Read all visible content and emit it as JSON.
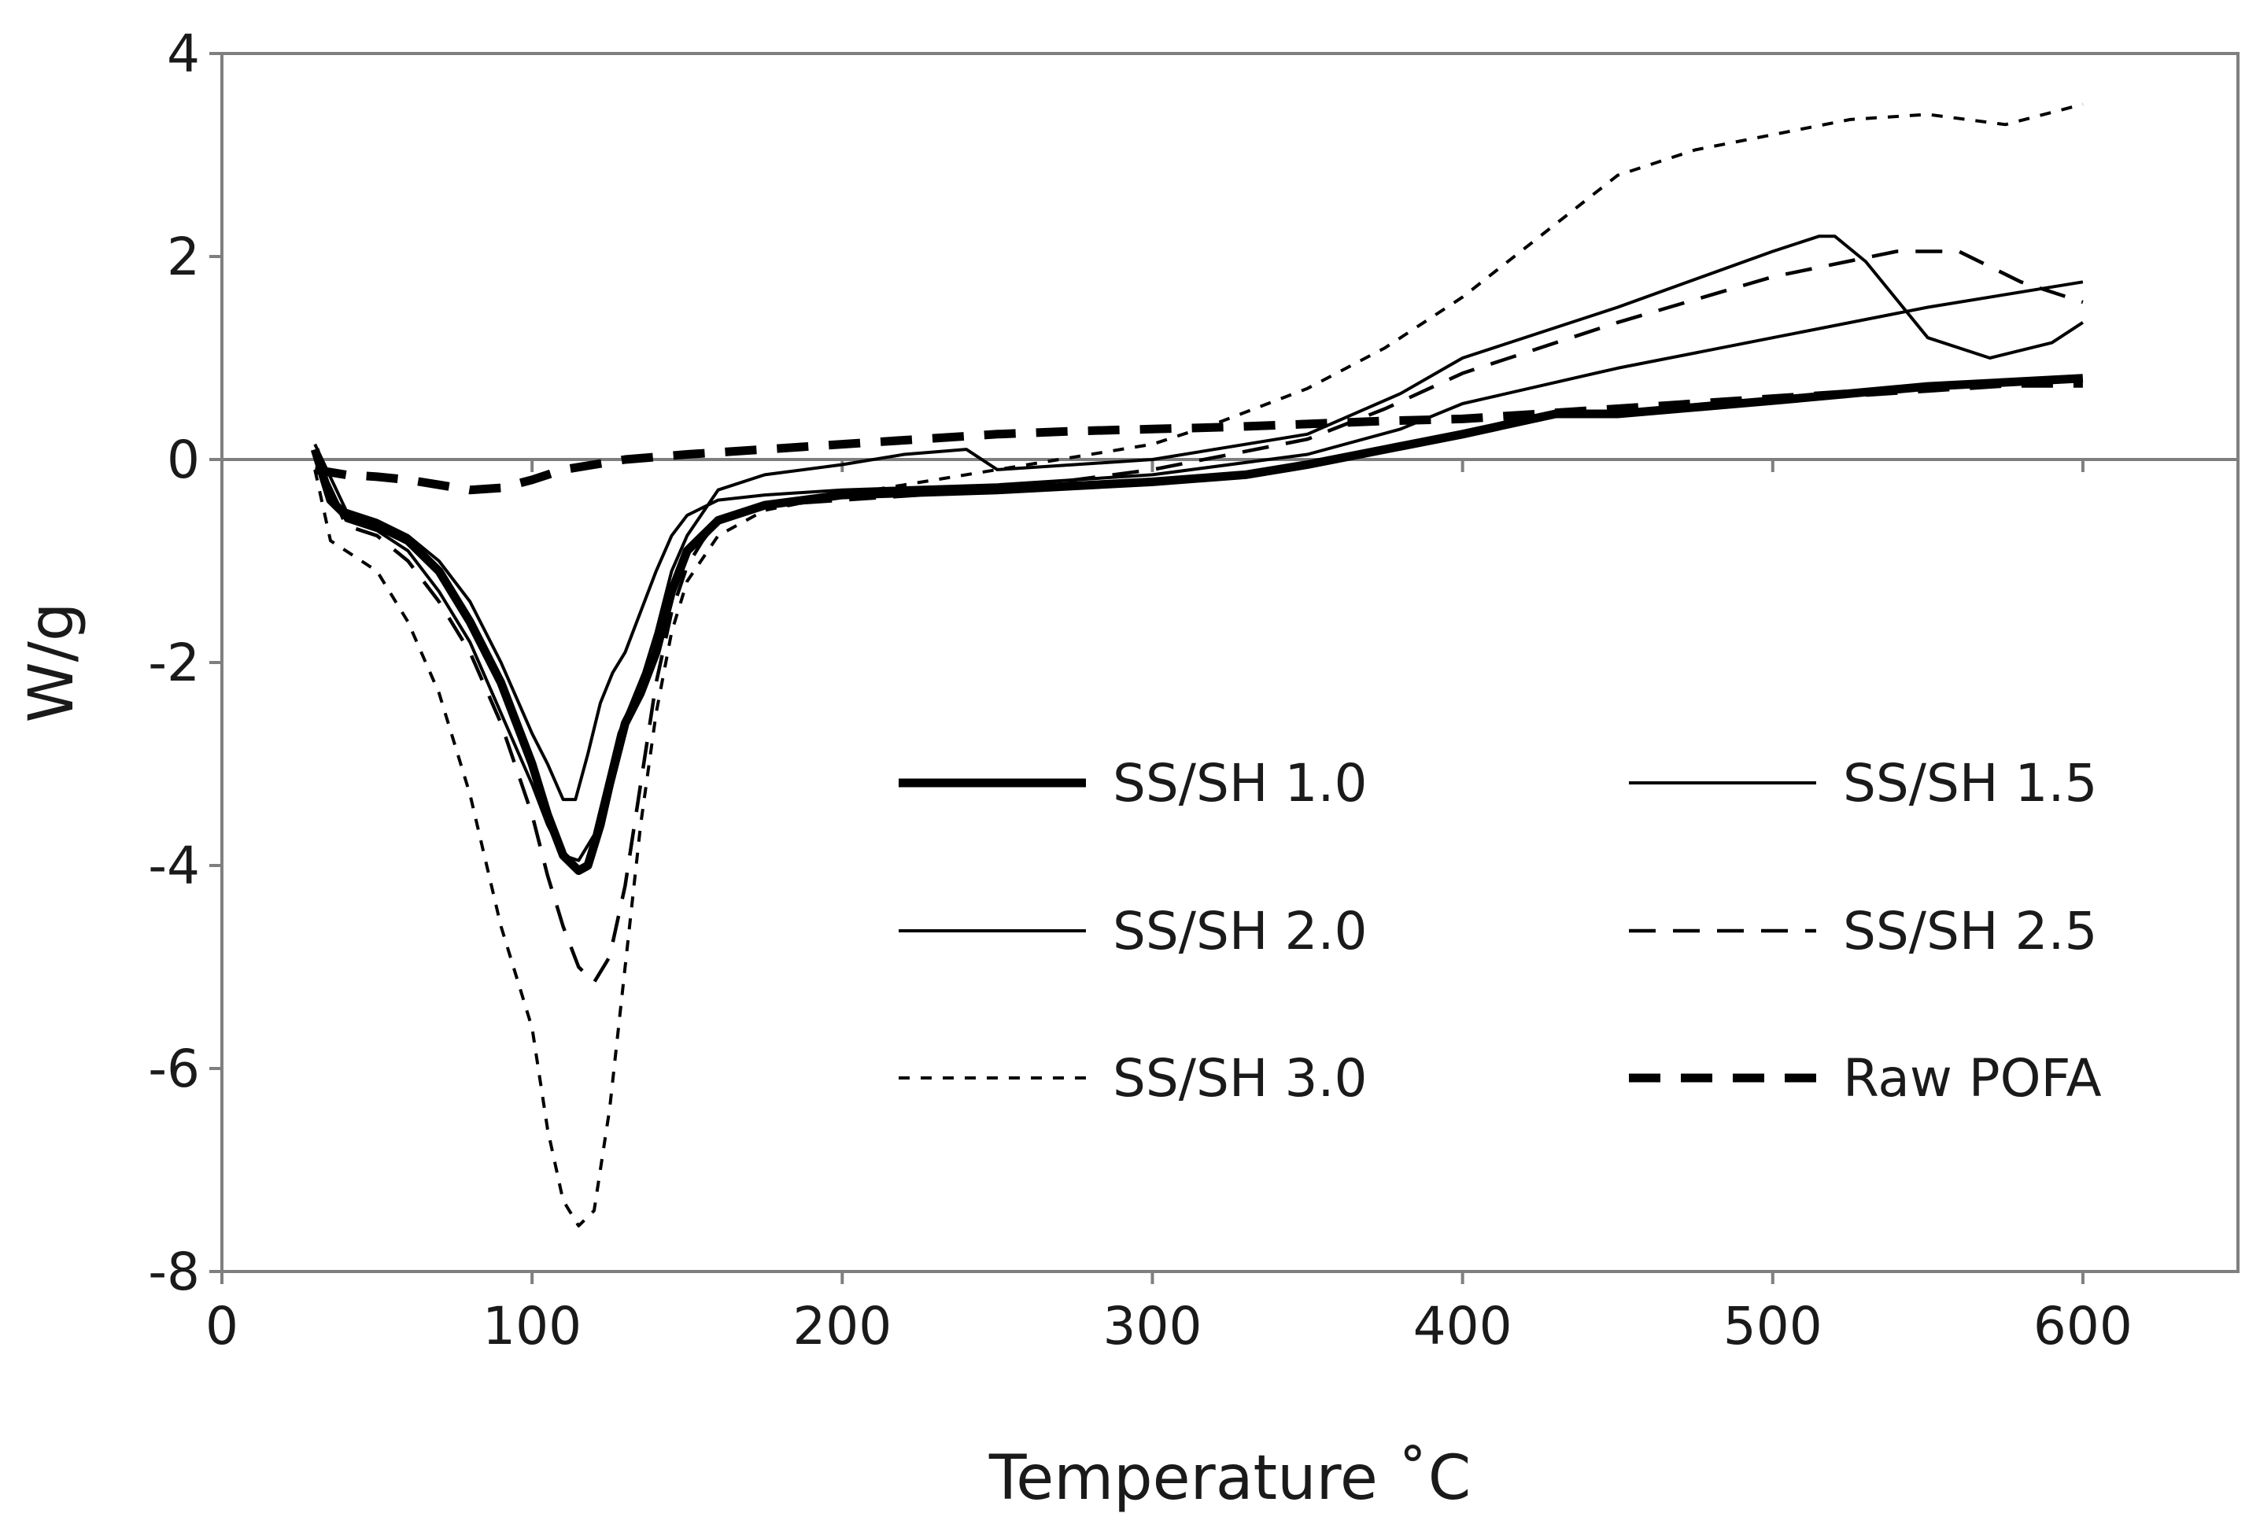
{
  "chart_data": {
    "type": "line",
    "title": "",
    "xlabel": "Temperature ˚C",
    "ylabel": "W/g",
    "xlim": [
      0,
      650
    ],
    "ylim": [
      -8,
      4
    ],
    "xticks": [
      0,
      100,
      200,
      300,
      400,
      500,
      600
    ],
    "yticks": [
      -8,
      -6,
      -4,
      -2,
      0,
      2,
      4
    ],
    "grid": false,
    "legend_position": "lower-right",
    "series": [
      {
        "name": "SS/SH 1.0",
        "style": "thick-solid",
        "color": "#000000",
        "x": [
          30,
          35,
          40,
          50,
          60,
          70,
          80,
          90,
          100,
          105,
          110,
          115,
          118,
          122,
          125,
          130,
          135,
          140,
          145,
          150,
          160,
          175,
          200,
          250,
          300,
          330,
          350,
          375,
          400,
          430,
          450,
          500,
          550,
          600
        ],
        "y": [
          0.1,
          -0.4,
          -0.55,
          -0.65,
          -0.8,
          -1.1,
          -1.6,
          -2.2,
          -3.0,
          -3.5,
          -3.9,
          -4.05,
          -4.0,
          -3.6,
          -3.2,
          -2.6,
          -2.3,
          -1.9,
          -1.3,
          -0.9,
          -0.6,
          -0.45,
          -0.35,
          -0.3,
          -0.22,
          -0.15,
          -0.05,
          0.1,
          0.25,
          0.45,
          0.45,
          0.58,
          0.72,
          0.8
        ]
      },
      {
        "name": "SS/SH 1.5",
        "style": "thin-solid",
        "color": "#000000",
        "x": [
          30,
          40,
          50,
          60,
          70,
          80,
          90,
          100,
          105,
          110,
          114,
          118,
          122,
          126,
          130,
          135,
          140,
          145,
          150,
          160,
          175,
          200,
          250,
          300,
          350,
          380,
          400,
          450,
          500,
          550,
          600
        ],
        "y": [
          0.15,
          -0.5,
          -0.6,
          -0.75,
          -1.0,
          -1.4,
          -2.0,
          -2.7,
          -3.0,
          -3.35,
          -3.35,
          -2.9,
          -2.4,
          -2.1,
          -1.9,
          -1.5,
          -1.1,
          -0.75,
          -0.55,
          -0.4,
          -0.35,
          -0.3,
          -0.25,
          -0.15,
          0.05,
          0.3,
          0.55,
          0.9,
          1.2,
          1.5,
          1.75
        ]
      },
      {
        "name": "SS/SH 2.0",
        "style": "thin-solid",
        "color": "#000000",
        "x": [
          30,
          40,
          50,
          60,
          70,
          80,
          90,
          100,
          105,
          110,
          115,
          120,
          124,
          128,
          132,
          136,
          140,
          145,
          150,
          160,
          175,
          200,
          220,
          240,
          250,
          275,
          300,
          350,
          380,
          400,
          450,
          500,
          515,
          520,
          530,
          550,
          570,
          590,
          600
        ],
        "y": [
          0.05,
          -0.6,
          -0.7,
          -0.9,
          -1.3,
          -1.8,
          -2.5,
          -3.2,
          -3.6,
          -3.9,
          -3.95,
          -3.7,
          -3.2,
          -2.7,
          -2.4,
          -2.1,
          -1.7,
          -1.1,
          -0.75,
          -0.3,
          -0.15,
          -0.05,
          0.05,
          0.1,
          -0.1,
          -0.05,
          0.0,
          0.25,
          0.65,
          1.0,
          1.5,
          2.05,
          2.2,
          2.2,
          1.95,
          1.2,
          1.0,
          1.15,
          1.35
        ]
      },
      {
        "name": "SS/SH 2.5",
        "style": "dashed",
        "color": "#000000",
        "x": [
          30,
          40,
          50,
          60,
          70,
          80,
          90,
          100,
          105,
          110,
          115,
          120,
          125,
          130,
          135,
          140,
          145,
          150,
          155,
          160,
          175,
          200,
          250,
          300,
          350,
          375,
          400,
          450,
          500,
          540,
          560,
          580,
          600
        ],
        "y": [
          0.05,
          -0.65,
          -0.75,
          -1.0,
          -1.4,
          -1.9,
          -2.6,
          -3.5,
          -4.1,
          -4.6,
          -5.0,
          -5.15,
          -4.9,
          -4.2,
          -3.2,
          -2.2,
          -1.5,
          -1.05,
          -0.8,
          -0.6,
          -0.45,
          -0.4,
          -0.3,
          -0.1,
          0.2,
          0.5,
          0.85,
          1.35,
          1.8,
          2.05,
          2.05,
          1.75,
          1.55
        ]
      },
      {
        "name": "SS/SH 3.0",
        "style": "short-dashed",
        "color": "#000000",
        "x": [
          30,
          35,
          40,
          50,
          60,
          70,
          80,
          90,
          100,
          105,
          110,
          115,
          120,
          125,
          130,
          135,
          140,
          145,
          150,
          160,
          175,
          200,
          250,
          300,
          320,
          350,
          375,
          400,
          425,
          450,
          475,
          500,
          525,
          550,
          575,
          600
        ],
        "y": [
          -0.1,
          -0.8,
          -0.9,
          -1.1,
          -1.6,
          -2.3,
          -3.3,
          -4.6,
          -5.6,
          -6.6,
          -7.3,
          -7.55,
          -7.4,
          -6.4,
          -5.0,
          -3.6,
          -2.5,
          -1.7,
          -1.2,
          -0.75,
          -0.5,
          -0.35,
          -0.1,
          0.15,
          0.35,
          0.7,
          1.1,
          1.6,
          2.2,
          2.8,
          3.05,
          3.2,
          3.35,
          3.4,
          3.3,
          3.5
        ]
      },
      {
        "name": "Raw POFA",
        "style": "thick-dashed",
        "color": "#000000",
        "x": [
          30,
          40,
          50,
          60,
          70,
          80,
          90,
          100,
          110,
          120,
          130,
          150,
          175,
          200,
          225,
          250,
          275,
          300,
          325,
          350,
          375,
          400,
          425,
          450,
          475,
          500,
          525,
          550,
          575,
          600
        ],
        "y": [
          -0.1,
          -0.15,
          -0.17,
          -0.2,
          -0.25,
          -0.3,
          -0.28,
          -0.2,
          -0.1,
          -0.05,
          0.0,
          0.05,
          0.1,
          0.15,
          0.2,
          0.25,
          0.28,
          0.3,
          0.32,
          0.35,
          0.38,
          0.4,
          0.45,
          0.5,
          0.55,
          0.6,
          0.65,
          0.7,
          0.75,
          0.75
        ]
      }
    ]
  }
}
